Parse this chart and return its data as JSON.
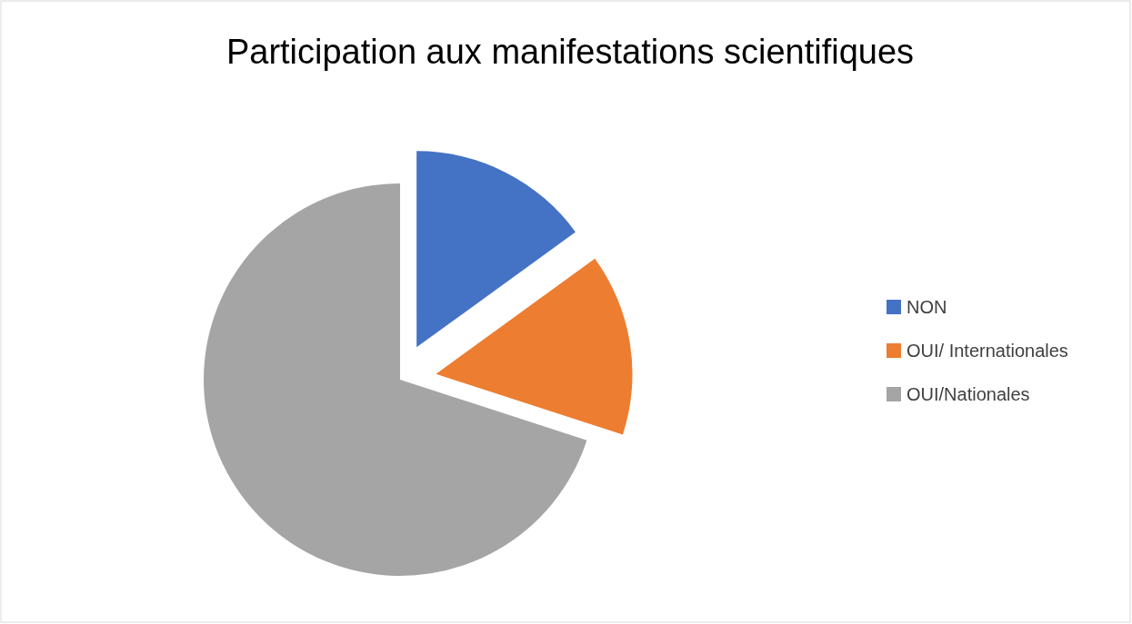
{
  "chart_data": {
    "type": "pie",
    "title": "Participation aux manifestations scientifiques",
    "categories": [
      "NON",
      "OUI/ Internationales",
      "OUI/Nationales"
    ],
    "values": [
      15,
      15,
      70
    ],
    "colors": [
      "#4472c4",
      "#ed7d31",
      "#a5a5a5"
    ],
    "legend": "right"
  }
}
